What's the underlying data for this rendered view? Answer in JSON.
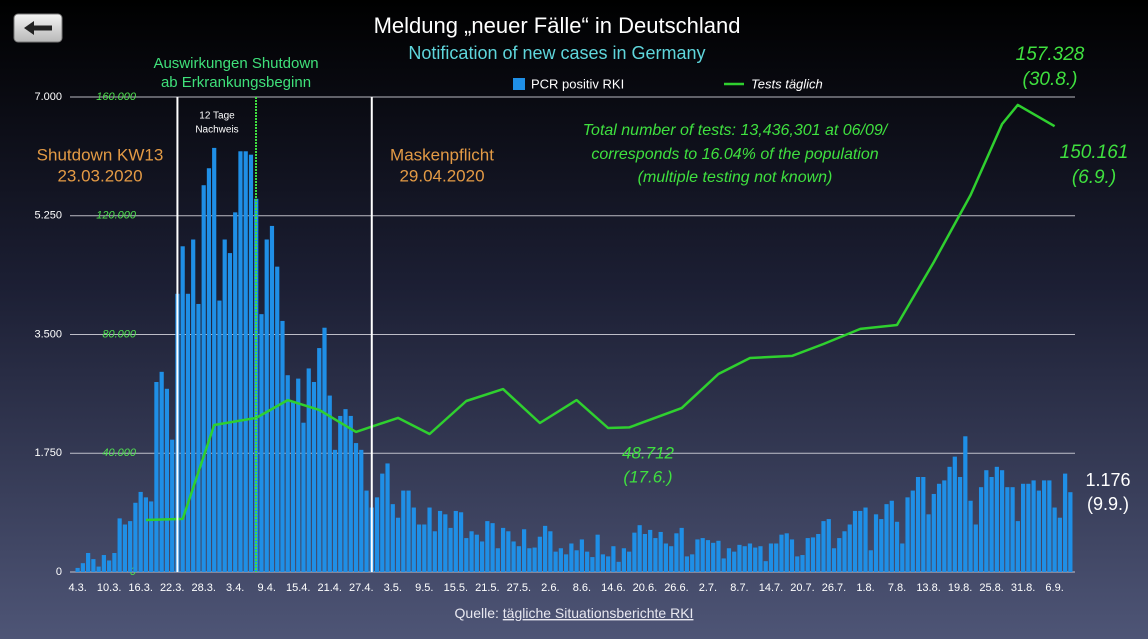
{
  "chart_data": {
    "type": "bar",
    "title": "Meldung „neuer Fälle“ in Deutschland",
    "subtitle": "Notification of new cases in Germany",
    "categories": [
      "4.3.",
      null,
      null,
      null,
      null,
      null,
      "10.3.",
      null,
      null,
      null,
      null,
      null,
      "16.3.",
      null,
      null,
      null,
      null,
      null,
      "22.3.",
      null,
      null,
      null,
      null,
      null,
      "28.3.",
      null,
      null,
      null,
      null,
      null,
      "3.4.",
      null,
      null,
      null,
      null,
      null,
      "9.4.",
      null,
      null,
      null,
      null,
      null,
      "15.4.",
      null,
      null,
      null,
      null,
      null,
      "21.4.",
      null,
      null,
      null,
      null,
      null,
      "27.4.",
      null,
      null,
      null,
      null,
      null,
      "3.5.",
      null,
      null,
      null,
      null,
      null,
      "9.5.",
      null,
      null,
      null,
      null,
      null,
      "15.5.",
      null,
      null,
      null,
      null,
      null,
      "21.5.",
      null,
      null,
      null,
      null,
      null,
      "27.5.",
      null,
      null,
      null,
      null,
      null,
      "2.6.",
      null,
      null,
      null,
      null,
      null,
      "8.6.",
      null,
      null,
      null,
      null,
      null,
      "14.6.",
      null,
      null,
      null,
      null,
      null,
      "20.6.",
      null,
      null,
      null,
      null,
      null,
      "26.6.",
      null,
      null,
      null,
      null,
      null,
      "2.7.",
      null,
      null,
      null,
      null,
      null,
      "8.7.",
      null,
      null,
      null,
      null,
      null,
      "14.7.",
      null,
      null,
      null,
      null,
      null,
      "20.7.",
      null,
      null,
      null,
      null,
      null,
      "26.7.",
      null,
      null,
      null,
      null,
      null,
      "1.8.",
      null,
      null,
      null,
      null,
      null,
      "7.8.",
      null,
      null,
      null,
      null,
      null,
      "13.8.",
      null,
      null,
      null,
      null,
      null,
      "19.8.",
      null,
      null,
      null,
      null,
      null,
      "25.8.",
      null,
      null,
      null,
      null,
      null,
      "31.8.",
      null,
      null,
      null,
      null,
      null,
      "6.9.",
      null,
      null,
      null
    ],
    "series": [
      {
        "name": "PCR positiv RKI",
        "color": "#1f8fe6",
        "values": [
          60,
          130,
          280,
          190,
          80,
          250,
          170,
          280,
          790,
          700,
          750,
          1020,
          1180,
          1100,
          1040,
          2800,
          2950,
          2700,
          1950,
          4100,
          4800,
          4100,
          4900,
          3950,
          5700,
          5950,
          6250,
          4000,
          4900,
          4700,
          5300,
          6200,
          6200,
          6150,
          5500,
          3800,
          4900,
          5100,
          4500,
          3700,
          2900,
          2500,
          2850,
          2200,
          3000,
          2800,
          3300,
          3600,
          2600,
          1800,
          2300,
          2400,
          2300,
          1900,
          1800,
          1200,
          950,
          1100,
          1450,
          1600,
          1000,
          800,
          1200,
          1200,
          950,
          700,
          700,
          950,
          600,
          900,
          850,
          650,
          900,
          880,
          500,
          600,
          550,
          450,
          750,
          720,
          350,
          650,
          600,
          450,
          380,
          630,
          350,
          360,
          520,
          680,
          600,
          300,
          350,
          260,
          420,
          320,
          480,
          300,
          220,
          550,
          260,
          230,
          380,
          150,
          350,
          300,
          580,
          690,
          560,
          620,
          500,
          590,
          420,
          380,
          570,
          650,
          230,
          260,
          480,
          500,
          470,
          430,
          460,
          200,
          350,
          300,
          400,
          380,
          420,
          360,
          380,
          160,
          420,
          420,
          550,
          570,
          480,
          230,
          250,
          500,
          510,
          560,
          750,
          780,
          350,
          500,
          600,
          700,
          900,
          900,
          950,
          320,
          850,
          780,
          1000,
          1050,
          740,
          420,
          1100,
          1200,
          1400,
          1400,
          850,
          1150,
          1300,
          1350,
          1550,
          1700,
          1400,
          2000,
          1050,
          700,
          1250,
          1500,
          1400,
          1550,
          1500,
          1250,
          1250,
          750,
          1300,
          1300,
          1350,
          1200,
          1350,
          1350,
          950,
          800,
          1450,
          1176
        ]
      },
      {
        "name": "Tests täglich",
        "type": "line",
        "axis": "y2",
        "color": "#2fd02f",
        "x": [
          "17.3.",
          "24.3.",
          "30.3.",
          "7.4.",
          "13.4.",
          "19.4.",
          "26.4.",
          "4.5.",
          "10.5.",
          "17.5.",
          "24.5.",
          "31.5.",
          "7.6.",
          "13.6.",
          "17.6.",
          "27.6.",
          "4.7.",
          "10.7.",
          "18.7.",
          "24.7.",
          "31.7.",
          "7.8.",
          "14.8.",
          "21.8.",
          "27.8.",
          "30.8.",
          "6.9."
        ],
        "values": [
          17500,
          17900,
          49500,
          51900,
          57900,
          54600,
          47200,
          51900,
          46500,
          57600,
          61600,
          50200,
          57900,
          48500,
          48712,
          55200,
          66700,
          72100,
          72800,
          76800,
          81900,
          83200,
          104400,
          127000,
          150900,
          157328,
          150161
        ]
      }
    ],
    "ylim": [
      0,
      7000
    ],
    "yticks": [
      0,
      {
        "value": 1750,
        "label": "1.750"
      },
      {
        "value": 3500,
        "label": "3.500"
      },
      {
        "value": 5250,
        "label": "5.250"
      },
      {
        "value": 7000,
        "label": "7.000"
      }
    ],
    "y2lim": [
      0,
      160000
    ],
    "y2ticks": [
      0,
      {
        "value": 40000,
        "label": "40.000"
      },
      {
        "value": 80000,
        "label": "80.000"
      },
      {
        "value": 120000,
        "label": "120.000"
      },
      {
        "value": 160000,
        "label": "160.000"
      }
    ],
    "grid": true,
    "events": [
      {
        "label": "Shutdown KW13",
        "date": "23.03.2020"
      },
      {
        "label": "Maskenpflicht",
        "date": "29.04.2020"
      }
    ],
    "shutdown_effect": [
      "Auswirkungen Shutdown",
      "ab Erkrankungsbeginn"
    ],
    "span_label": [
      "12 Tage",
      "Nachweis"
    ],
    "tests_note": [
      "Total number of tests: 13,436,301 at 06/09/",
      "corresponds to 16.04% of the population",
      "(multiple testing not known)"
    ],
    "point_labels": [
      [
        "157.328",
        "(30.8.)"
      ],
      [
        "150.161",
        "(6.9.)"
      ],
      [
        "48.712",
        "(17.6.)"
      ],
      [
        "1.176",
        "(9.9.)"
      ]
    ]
  },
  "source": {
    "prefix": "Quelle:",
    "link": "tägliche Situationsberichte RKI"
  }
}
